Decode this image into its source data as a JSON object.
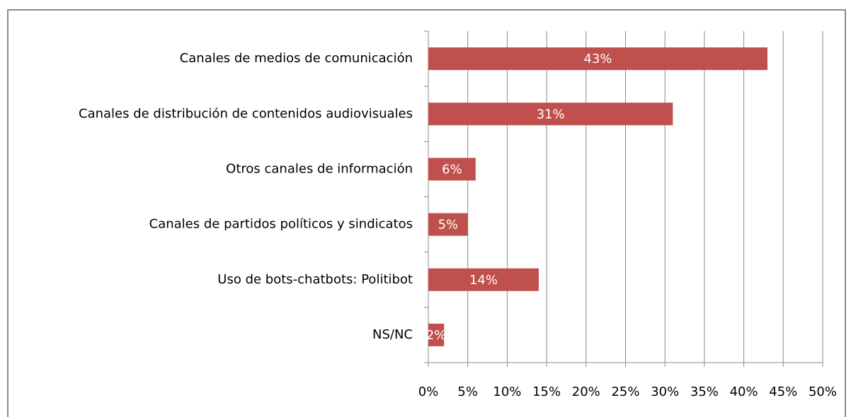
{
  "chart_data": {
    "type": "bar",
    "orientation": "horizontal",
    "categories": [
      "Canales de medios de comunicación",
      "Canales de distribución de contenidos audiovisuales",
      "Otros canales de información",
      "Canales de partidos políticos y sindicatos",
      "Uso de bots-chatbots: Politibot",
      "NS/NC"
    ],
    "values": [
      43,
      31,
      6,
      5,
      14,
      2
    ],
    "value_labels": [
      "43%",
      "31%",
      "6%",
      "5%",
      "14%",
      "2%"
    ],
    "color": "#c0504d",
    "xlim": [
      0,
      50
    ],
    "xticks": [
      {
        "value": 0,
        "label": "0%"
      },
      {
        "value": 5,
        "label": "5%"
      },
      {
        "value": 10,
        "label": "10%"
      },
      {
        "value": 15,
        "label": "15%"
      },
      {
        "value": 20,
        "label": "20%"
      },
      {
        "value": 25,
        "label": "25%"
      },
      {
        "value": 30,
        "label": "30%"
      },
      {
        "value": 35,
        "label": "35%"
      },
      {
        "value": 40,
        "label": "40%"
      },
      {
        "value": 45,
        "label": "45%"
      },
      {
        "value": 50,
        "label": "50%"
      }
    ],
    "grid": true
  }
}
